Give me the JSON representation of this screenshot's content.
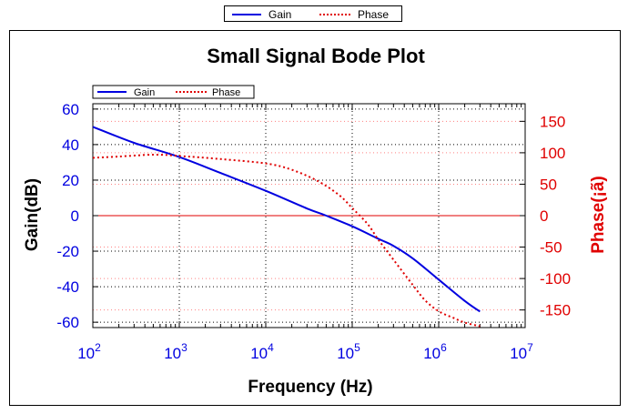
{
  "legend_top": {
    "entries": [
      {
        "name": "Gain",
        "color": "#0000e0",
        "style": "solid"
      },
      {
        "name": "Phase",
        "color": "#e00000",
        "style": "dotted"
      }
    ]
  },
  "chart_data": {
    "type": "line",
    "title": "Small Signal Bode Plot",
    "xlabel": "Frequency (Hz)",
    "ylabel": "Gain(dB)",
    "y2label": "Phase(¡ã)",
    "xscale": "log",
    "xlim": [
      100,
      10000000
    ],
    "ylim": [
      -63,
      63
    ],
    "y2lim": [
      -178,
      178
    ],
    "x_ticks": [
      {
        "value": 100,
        "base": "10",
        "exp": "2"
      },
      {
        "value": 1000,
        "base": "10",
        "exp": "3"
      },
      {
        "value": 10000,
        "base": "10",
        "exp": "4"
      },
      {
        "value": 100000,
        "base": "10",
        "exp": "5"
      },
      {
        "value": 1000000,
        "base": "10",
        "exp": "6"
      },
      {
        "value": 10000000,
        "base": "10",
        "exp": "7"
      }
    ],
    "y_ticks": [
      "60",
      "40",
      "20",
      "0",
      "-20",
      "-40",
      "-60"
    ],
    "y2_ticks": [
      "150",
      "100",
      "50",
      "0",
      "-50",
      "-100",
      "-150"
    ],
    "y_tick_values": [
      60,
      40,
      20,
      0,
      -20,
      -40,
      -60
    ],
    "y2_tick_values": [
      150,
      100,
      50,
      0,
      -50,
      -100,
      -150
    ],
    "grid": true,
    "legend": "top-left",
    "colors": {
      "gain": "#0000e0",
      "phase": "#e00000",
      "zero_line": "#e00000"
    },
    "series": [
      {
        "name": "Gain",
        "axis": "left",
        "style": "solid",
        "x": [
          100,
          300,
          1000,
          3000,
          10000,
          30000,
          50000,
          100000,
          200000,
          300000,
          500000,
          1000000,
          2000000,
          3000000
        ],
        "y": [
          50,
          41,
          33,
          24,
          14,
          4,
          0,
          -6,
          -13,
          -17,
          -24,
          -36,
          -48,
          -54
        ]
      },
      {
        "name": "Phase",
        "axis": "right",
        "style": "dotted",
        "x": [
          100,
          200,
          500,
          1000,
          3000,
          10000,
          20000,
          40000,
          70000,
          100000,
          150000,
          200000,
          300000,
          500000,
          700000,
          1000000,
          1500000,
          2000000,
          3000000
        ],
        "y": [
          92,
          94,
          97,
          95,
          90,
          83,
          73,
          55,
          33,
          12,
          -13,
          -38,
          -70,
          -110,
          -135,
          -152,
          -163,
          -170,
          -176
        ]
      }
    ]
  }
}
